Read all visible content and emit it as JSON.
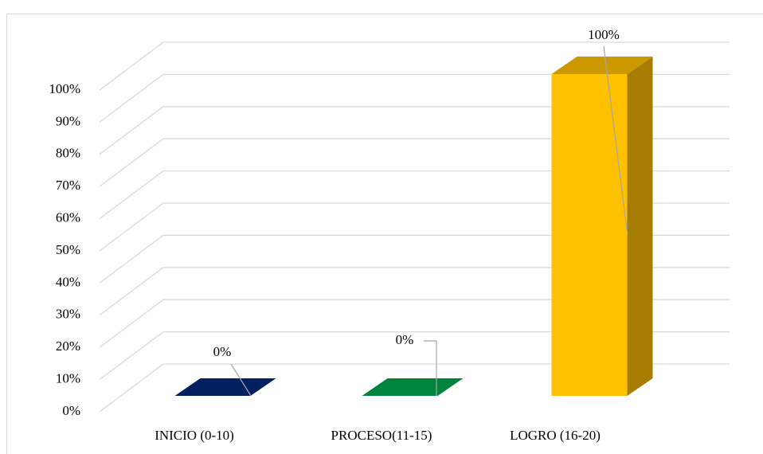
{
  "chart_data": {
    "type": "bar3d",
    "categories": [
      "INICIO (0-10)",
      "PROCESO(11-15)",
      "LOGRO (16-20)"
    ],
    "values": [
      0,
      0,
      100
    ],
    "value_labels": [
      "0%",
      "0%",
      "100%"
    ],
    "colors": [
      "#002060",
      "#00843d",
      "#ffc000"
    ],
    "ylim": [
      0,
      100
    ],
    "yticks": [
      {
        "value": 0,
        "label": "0%"
      },
      {
        "value": 10,
        "label": "10%"
      },
      {
        "value": 20,
        "label": "20%"
      },
      {
        "value": 30,
        "label": "30%"
      },
      {
        "value": 40,
        "label": "40%"
      },
      {
        "value": 50,
        "label": "50%"
      },
      {
        "value": 60,
        "label": "60%"
      },
      {
        "value": 70,
        "label": "70%"
      },
      {
        "value": 80,
        "label": "80%"
      },
      {
        "value": 90,
        "label": "90%"
      },
      {
        "value": 100,
        "label": "100%"
      }
    ],
    "grid": true
  }
}
